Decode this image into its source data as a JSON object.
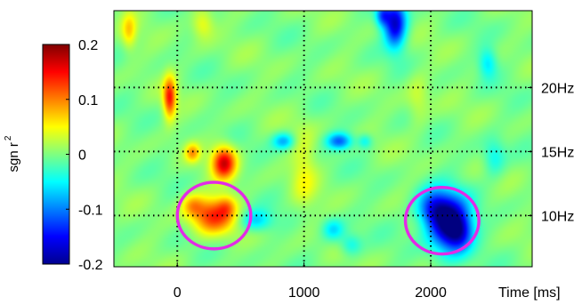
{
  "chart_data": {
    "type": "heatmap",
    "xlabel": "Time [ms]",
    "colorbar_label": "sgn r",
    "colorbar_label_superscript": "2",
    "colormap": "jet",
    "xlim": [
      -500,
      2800
    ],
    "ylim": [
      6,
      26
    ],
    "clim": [
      -0.2,
      0.2
    ],
    "x_ticks": [
      {
        "value": 0,
        "label": "0"
      },
      {
        "value": 1000,
        "label": "1000"
      },
      {
        "value": 2000,
        "label": "2000"
      }
    ],
    "y_ticks": [
      {
        "value": 10,
        "label": "10Hz"
      },
      {
        "value": 15,
        "label": "15Hz"
      },
      {
        "value": 20,
        "label": "20Hz"
      }
    ],
    "colorbar_ticks": [
      {
        "value": 0.2,
        "label": "0.2"
      },
      {
        "value": 0.1,
        "label": "0.1"
      },
      {
        "value": 0,
        "label": "0"
      },
      {
        "value": -0.1,
        "label": "-0.1"
      },
      {
        "value": -0.2,
        "label": "-0.2"
      }
    ],
    "grid": "dotted lines at x and y ticks",
    "blobs": [
      {
        "t": 1720,
        "f": 25.0,
        "st": 60,
        "sf": 1.3,
        "v": -0.17
      },
      {
        "t": 1620,
        "f": 25.6,
        "st": 40,
        "sf": 0.6,
        "v": -0.1
      },
      {
        "t": 2150,
        "f": 9.4,
        "st": 110,
        "sf": 1.5,
        "v": -0.21
      },
      {
        "t": 2010,
        "f": 10.6,
        "st": 90,
        "sf": 1.0,
        "v": -0.11
      },
      {
        "t": 2230,
        "f": 8.6,
        "st": 70,
        "sf": 0.9,
        "v": -0.07
      },
      {
        "t": 280,
        "f": 10.0,
        "st": 120,
        "sf": 1.0,
        "v": 0.13
      },
      {
        "t": 120,
        "f": 10.8,
        "st": 60,
        "sf": 0.6,
        "v": 0.06
      },
      {
        "t": 390,
        "f": 10.7,
        "st": 50,
        "sf": 0.6,
        "v": 0.05
      },
      {
        "t": 370,
        "f": 14.1,
        "st": 65,
        "sf": 0.9,
        "v": 0.16
      },
      {
        "t": 120,
        "f": 14.9,
        "st": 40,
        "sf": 0.5,
        "v": 0.08
      },
      {
        "t": -60,
        "f": 19.2,
        "st": 35,
        "sf": 1.1,
        "v": 0.14
      },
      {
        "t": 1000,
        "f": 13.5,
        "st": 70,
        "sf": 2.2,
        "v": 0.04
      },
      {
        "t": 1280,
        "f": 15.8,
        "st": 70,
        "sf": 0.45,
        "v": -0.11
      },
      {
        "t": 840,
        "f": 15.8,
        "st": 60,
        "sf": 0.45,
        "v": -0.08
      },
      {
        "t": 1480,
        "f": 15.8,
        "st": 40,
        "sf": 0.4,
        "v": -0.05
      },
      {
        "t": -380,
        "f": 24.4,
        "st": 40,
        "sf": 1.0,
        "v": 0.06
      },
      {
        "t": 200,
        "f": 25.0,
        "st": 60,
        "sf": 0.8,
        "v": 0.05
      },
      {
        "t": 620,
        "f": 9.6,
        "st": 90,
        "sf": 0.6,
        "v": -0.07
      },
      {
        "t": 1230,
        "f": 8.9,
        "st": 60,
        "sf": 0.6,
        "v": -0.06
      },
      {
        "t": 1370,
        "f": 7.7,
        "st": 60,
        "sf": 0.6,
        "v": -0.05
      },
      {
        "t": 2450,
        "f": 21.9,
        "st": 50,
        "sf": 0.8,
        "v": -0.06
      },
      {
        "t": 1900,
        "f": 19.0,
        "st": 60,
        "sf": 1.5,
        "v": 0.03
      },
      {
        "t": 2500,
        "f": 14.5,
        "st": 60,
        "sf": 1.0,
        "v": -0.05
      }
    ],
    "annotations": [
      {
        "shape": "ellipse",
        "color": "#e22be6",
        "t": 290,
        "f": 10.0,
        "rt": 290,
        "rf": 2.6
      },
      {
        "shape": "ellipse",
        "color": "#e22be6",
        "t": 2090,
        "f": 9.6,
        "rt": 290,
        "rf": 2.6
      }
    ]
  }
}
